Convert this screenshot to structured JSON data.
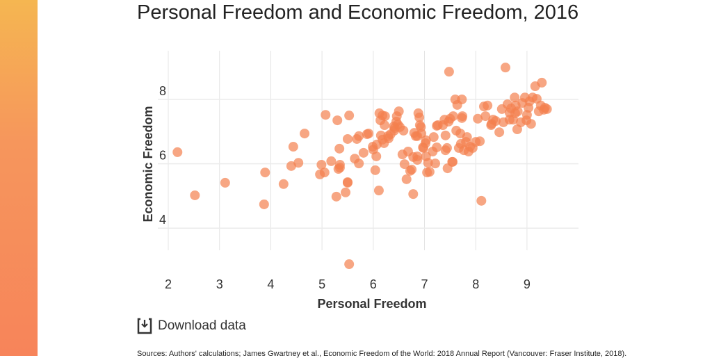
{
  "title": "Personal Freedom and Economic Freedom, 2016",
  "download_label": "Download data",
  "sources": "Sources: Authors' calculations; James Gwartney et al., Economic Freedom of the World: 2018 Annual Report (Vancouver: Fraser Institute, 2018).",
  "accent": "#f4804f",
  "chart_data": {
    "type": "scatter",
    "xlabel": "Personal Freedom",
    "ylabel": "Economic Freedom",
    "xlim": [
      2,
      10
    ],
    "ylim": [
      2.6,
      9.3
    ],
    "xticks": [
      2,
      3,
      4,
      5,
      6,
      7,
      8,
      9
    ],
    "yticks": [
      4,
      6,
      8
    ],
    "grid": true,
    "legend": "none",
    "points": [
      [
        2.18,
        6.36
      ],
      [
        2.52,
        5.02
      ],
      [
        3.11,
        5.41
      ],
      [
        3.89,
        5.73
      ],
      [
        3.87,
        4.74
      ],
      [
        4.25,
        5.37
      ],
      [
        4.4,
        5.93
      ],
      [
        4.44,
        6.53
      ],
      [
        4.54,
        6.03
      ],
      [
        4.66,
        6.94
      ],
      [
        4.96,
        5.67
      ],
      [
        4.99,
        5.97
      ],
      [
        5.07,
        7.52
      ],
      [
        5.05,
        5.73
      ],
      [
        5.18,
        6.08
      ],
      [
        5.28,
        4.98
      ],
      [
        5.3,
        7.35
      ],
      [
        5.32,
        5.84
      ],
      [
        5.34,
        6.47
      ],
      [
        5.35,
        5.88
      ],
      [
        5.35,
        5.97
      ],
      [
        5.46,
        5.11
      ],
      [
        5.5,
        5.43
      ],
      [
        5.53,
        7.5
      ],
      [
        5.5,
        6.77
      ],
      [
        5.64,
        6.16
      ],
      [
        5.68,
        6.77
      ],
      [
        5.72,
        6.01
      ],
      [
        5.72,
        6.86
      ],
      [
        5.81,
        6.34
      ],
      [
        5.88,
        6.92
      ],
      [
        5.91,
        6.94
      ],
      [
        5.99,
        6.53
      ],
      [
        6.0,
        6.44
      ],
      [
        6.04,
        5.8
      ],
      [
        6.06,
        6.23
      ],
      [
        6.07,
        6.6
      ],
      [
        6.11,
        5.17
      ],
      [
        6.12,
        7.57
      ],
      [
        6.14,
        7.35
      ],
      [
        6.15,
        6.88
      ],
      [
        6.18,
        6.75
      ],
      [
        6.21,
        6.64
      ],
      [
        6.23,
        7.48
      ],
      [
        6.3,
        6.79
      ],
      [
        6.34,
        6.92
      ],
      [
        6.4,
        7.16
      ],
      [
        6.41,
        7.03
      ],
      [
        6.42,
        7.11
      ],
      [
        6.45,
        7.31
      ],
      [
        6.46,
        7.48
      ],
      [
        6.48,
        7.22
      ],
      [
        6.52,
        7.14
      ],
      [
        6.5,
        7.63
      ],
      [
        6.59,
        7.03
      ],
      [
        6.57,
        6.29
      ],
      [
        6.61,
        5.99
      ],
      [
        6.65,
        5.52
      ],
      [
        6.68,
        6.38
      ],
      [
        6.72,
        5.78
      ],
      [
        6.75,
        5.82
      ],
      [
        6.78,
        5.06
      ],
      [
        6.78,
        6.21
      ],
      [
        6.86,
        6.23
      ],
      [
        6.86,
        6.86
      ],
      [
        6.88,
        7.57
      ],
      [
        6.9,
        7.44
      ],
      [
        6.91,
        7.2
      ],
      [
        6.93,
        7.14
      ],
      [
        6.94,
        6.94
      ],
      [
        6.97,
        6.51
      ],
      [
        6.98,
        6.49
      ],
      [
        7.02,
        6.64
      ],
      [
        7.03,
        6.23
      ],
      [
        7.05,
        5.73
      ],
      [
        7.07,
        6.03
      ],
      [
        7.16,
        6.38
      ],
      [
        7.18,
        6.83
      ],
      [
        7.24,
        6.51
      ],
      [
        7.24,
        7.18
      ],
      [
        7.26,
        7.2
      ],
      [
        7.36,
        7.2
      ],
      [
        7.39,
        7.37
      ],
      [
        7.41,
        6.88
      ],
      [
        7.41,
        6.42
      ],
      [
        7.44,
        6.49
      ],
      [
        7.45,
        5.86
      ],
      [
        7.47,
        7.31
      ],
      [
        7.48,
        8.86
      ],
      [
        7.5,
        7.4
      ],
      [
        7.54,
        6.06
      ],
      [
        7.55,
        6.06
      ],
      [
        7.56,
        7.48
      ],
      [
        7.6,
        8.0
      ],
      [
        7.62,
        7.03
      ],
      [
        7.64,
        7.83
      ],
      [
        7.67,
        6.49
      ],
      [
        7.73,
        8.0
      ],
      [
        7.73,
        7.42
      ],
      [
        7.74,
        7.48
      ],
      [
        7.71,
        6.62
      ],
      [
        7.77,
        6.42
      ],
      [
        7.81,
        6.68
      ],
      [
        7.83,
        6.83
      ],
      [
        7.86,
        6.38
      ],
      [
        7.89,
        6.53
      ],
      [
        7.94,
        6.49
      ],
      [
        8.0,
        6.68
      ],
      [
        8.11,
        4.85
      ],
      [
        8.19,
        7.48
      ],
      [
        8.16,
        7.78
      ],
      [
        8.23,
        7.81
      ],
      [
        8.3,
        7.2
      ],
      [
        8.31,
        7.24
      ],
      [
        8.39,
        7.33
      ],
      [
        8.51,
        7.7
      ],
      [
        8.46,
        6.98
      ],
      [
        8.54,
        7.29
      ],
      [
        8.58,
        8.99
      ],
      [
        8.66,
        7.37
      ],
      [
        8.69,
        7.72
      ],
      [
        8.76,
        8.06
      ],
      [
        8.78,
        7.81
      ],
      [
        8.81,
        7.07
      ],
      [
        8.82,
        7.63
      ],
      [
        8.88,
        7.29
      ],
      [
        8.91,
        7.89
      ],
      [
        8.96,
        8.06
      ],
      [
        9.0,
        7.52
      ],
      [
        9.03,
        7.74
      ],
      [
        9.05,
        7.94
      ],
      [
        9.11,
        8.06
      ],
      [
        9.19,
        8.02
      ],
      [
        9.16,
        8.41
      ],
      [
        9.29,
        8.52
      ],
      [
        9.23,
        7.63
      ],
      [
        9.27,
        7.81
      ],
      [
        9.33,
        7.68
      ],
      [
        9.35,
        7.74
      ],
      [
        9.39,
        7.7
      ],
      [
        9.08,
        7.24
      ],
      [
        8.99,
        7.35
      ],
      [
        8.73,
        7.37
      ],
      [
        8.77,
        7.57
      ],
      [
        8.66,
        7.59
      ],
      [
        8.34,
        7.37
      ],
      [
        8.62,
        7.85
      ],
      [
        8.04,
        7.4
      ],
      [
        8.08,
        6.7
      ],
      [
        7.7,
        6.94
      ],
      [
        7.21,
        6.01
      ],
      [
        7.1,
        5.75
      ],
      [
        7.03,
        6.73
      ],
      [
        6.8,
        6.96
      ],
      [
        6.83,
        6.86
      ],
      [
        6.29,
        6.86
      ],
      [
        6.22,
        7.2
      ],
      [
        6.18,
        7.5
      ],
      [
        6.86,
        6.12
      ],
      [
        5.5,
        5.41
      ],
      [
        5.53,
        2.88
      ]
    ]
  }
}
